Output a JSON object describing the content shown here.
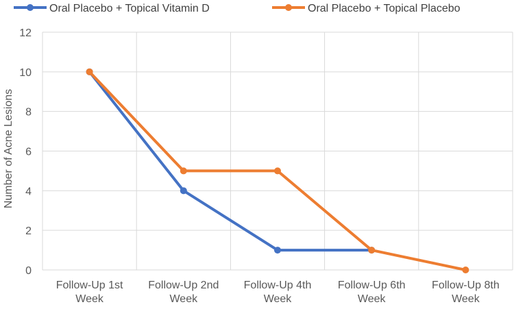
{
  "chart_data": {
    "type": "line",
    "title": "",
    "xlabel": "",
    "ylabel": "Number of Acne Lesions",
    "ylim": [
      0,
      12
    ],
    "yticks": [
      0,
      2,
      4,
      6,
      8,
      10,
      12
    ],
    "grid": true,
    "legend_position": "top",
    "categories": [
      [
        "Follow-Up 1st",
        "Week"
      ],
      [
        "Follow-Up 2nd",
        "Week"
      ],
      [
        "Follow-Up 4th",
        "Week"
      ],
      [
        "Follow-Up 6th",
        "Week"
      ],
      [
        "Follow-Up 8th",
        "Week"
      ]
    ],
    "series": [
      {
        "name": "Oral Placebo + Topical Vitamin D",
        "color": "#4472C4",
        "values": [
          10,
          4,
          1,
          1,
          null
        ]
      },
      {
        "name": "Oral Placebo + Topical Placebo",
        "color": "#ED7D31",
        "values": [
          10,
          5,
          5,
          1,
          0
        ]
      }
    ]
  }
}
